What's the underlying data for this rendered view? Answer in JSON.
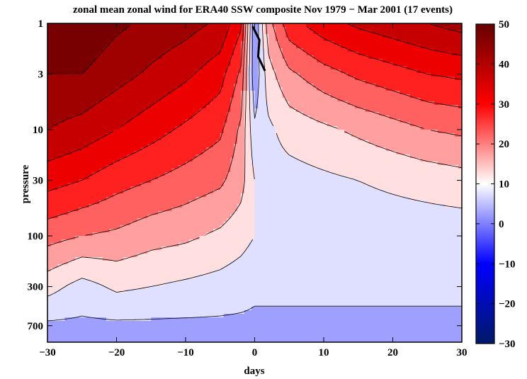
{
  "chart_data": {
    "type": "heatmap",
    "title": "zonal mean zonal wind for ERA40 SSW composite Nov 1979 − Mar 2001 (17 events)",
    "xlabel": "days",
    "ylabel": "pressure",
    "xlim": [
      -30,
      30
    ],
    "ylim": [
      1,
      1000
    ],
    "y_scale": "log",
    "y_reversed": true,
    "x_ticks": [
      {
        "value": -30,
        "label": "−30"
      },
      {
        "value": -20,
        "label": "−20"
      },
      {
        "value": -10,
        "label": "−10"
      },
      {
        "value": 0,
        "label": "0"
      },
      {
        "value": 10,
        "label": "10"
      },
      {
        "value": 20,
        "label": "20"
      },
      {
        "value": 30,
        "label": "30"
      }
    ],
    "y_ticks": [
      {
        "value": 1,
        "label": "1"
      },
      {
        "value": 3,
        "label": "3"
      },
      {
        "value": 10,
        "label": "10"
      },
      {
        "value": 30,
        "label": "30"
      },
      {
        "value": 100,
        "label": "100"
      },
      {
        "value": 300,
        "label": "300"
      },
      {
        "value": 700,
        "label": "700"
      }
    ],
    "colorbar": {
      "range": [
        -30,
        50
      ],
      "ticks": [
        {
          "value": 50,
          "label": "50"
        },
        {
          "value": 40,
          "label": "40"
        },
        {
          "value": 30,
          "label": "30"
        },
        {
          "value": 20,
          "label": "20"
        },
        {
          "value": 10,
          "label": "10"
        },
        {
          "value": 0,
          "label": "0"
        },
        {
          "value": -10,
          "label": "−10"
        },
        {
          "value": -20,
          "label": "−20"
        },
        {
          "value": -30,
          "label": "−30"
        }
      ],
      "colors": [
        "#001a66",
        "#0000ff",
        "#ffffff",
        "#ff0000",
        "#660000"
      ]
    },
    "contour_interval": 5,
    "zero_contour": {
      "days": [
        -0.3,
        1.5
      ],
      "pressure": [
        1,
        2.8
      ],
      "style": "bold"
    },
    "fields": {
      "day": [
        -30,
        -25,
        -20,
        -15,
        -10,
        -5,
        -2,
        0,
        2,
        5,
        10,
        15,
        20,
        25,
        30
      ],
      "pressure": [
        1,
        3,
        10,
        30,
        100,
        300,
        700,
        1000
      ],
      "u": [
        [
          47,
          49,
          46,
          44,
          42,
          39,
          31,
          0,
          18,
          28,
          33,
          36,
          38,
          40,
          42
        ],
        [
          45,
          45,
          42,
          39,
          36,
          32,
          24,
          1,
          13,
          19,
          23,
          26,
          28,
          30,
          31
        ],
        [
          40,
          38,
          35,
          32,
          29,
          26,
          19,
          6,
          9,
          12,
          14,
          16,
          18,
          20,
          21
        ],
        [
          32,
          30,
          27,
          25,
          23,
          21,
          17,
          10,
          8,
          8,
          9,
          10,
          11,
          12,
          13
        ],
        [
          22,
          20,
          19,
          17,
          16,
          14,
          12,
          10,
          8,
          7,
          7,
          7,
          7,
          7,
          7
        ],
        [
          12,
          8,
          11,
          10,
          9,
          8,
          7,
          6,
          6,
          6,
          6,
          6,
          6,
          6,
          6
        ],
        [
          4,
          4,
          4,
          4,
          4,
          4,
          4,
          4,
          4,
          4,
          4,
          4,
          4,
          4,
          4
        ],
        [
          1,
          1,
          1,
          1,
          1,
          1,
          1,
          1,
          1,
          1,
          1,
          1,
          1,
          1,
          1
        ]
      ]
    }
  }
}
